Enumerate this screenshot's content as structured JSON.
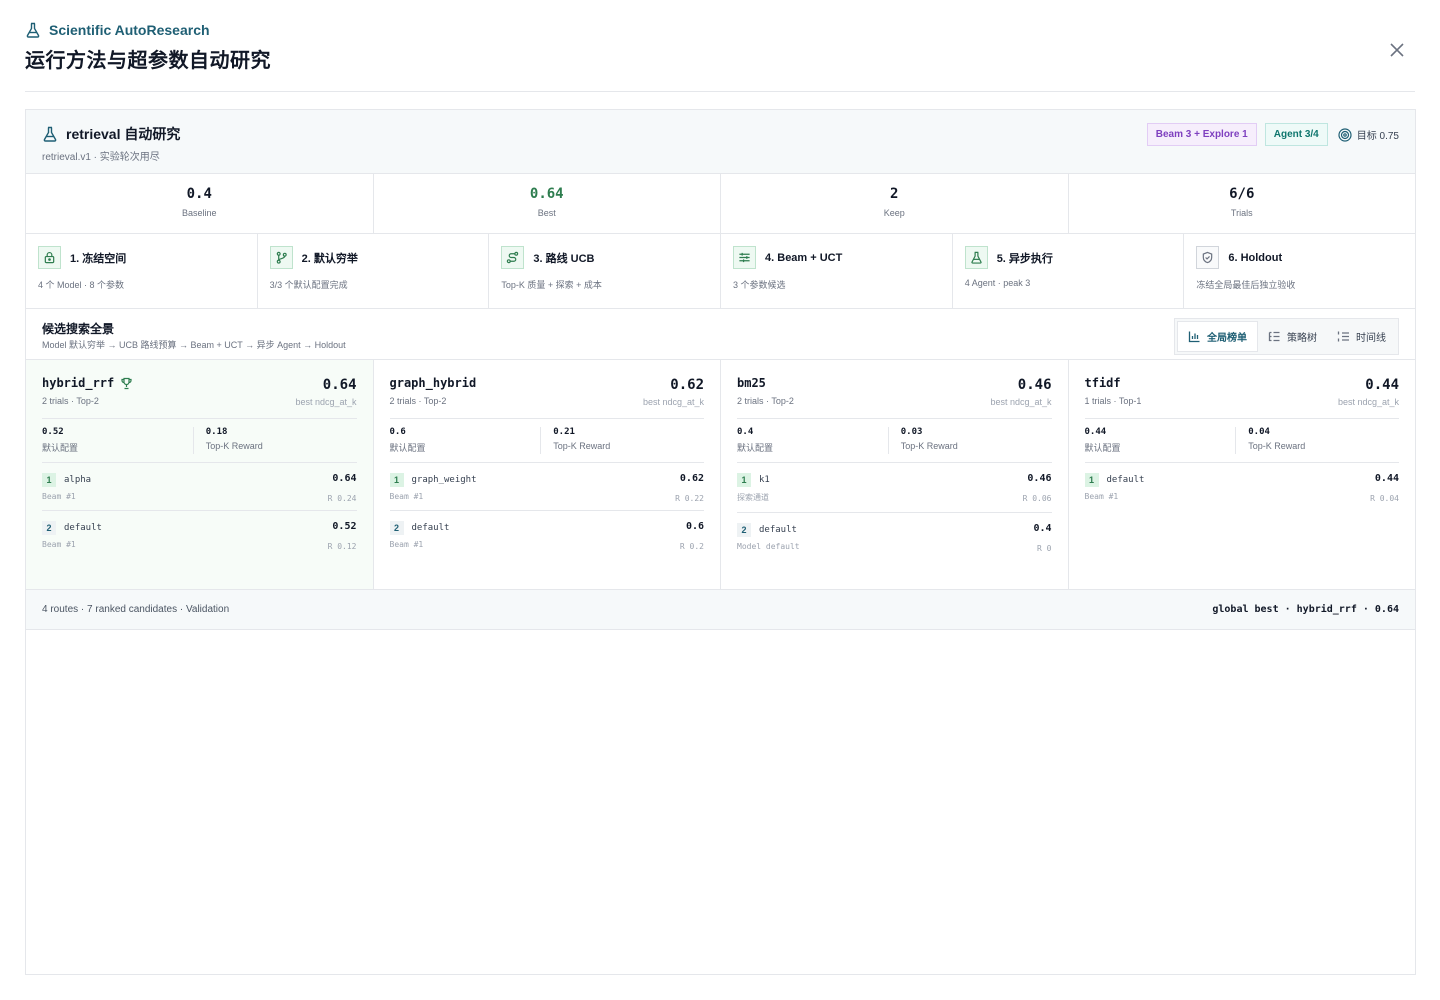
{
  "header": {
    "brand": "Scientific AutoResearch",
    "title": "运行方法与超参数自动研究"
  },
  "panel": {
    "title": "retrieval 自动研究",
    "subtitle": "retrieval.v1 · 实验轮次用尽",
    "badges": {
      "strategy": "Beam 3 + Explore 1",
      "agent": "Agent 3/4",
      "target": "目标 0.75"
    }
  },
  "stats": [
    {
      "value": "0.4",
      "label": "Baseline"
    },
    {
      "value": "0.64",
      "label": "Best"
    },
    {
      "value": "2",
      "label": "Keep"
    },
    {
      "value": "6/6",
      "label": "Trials"
    }
  ],
  "steps": [
    {
      "title": "1. 冻结空间",
      "desc": "4 个 Model · 8 个参数",
      "icon": "lock-icon"
    },
    {
      "title": "2. 默认穷举",
      "desc": "3/3 个默认配置完成",
      "icon": "branch-icon"
    },
    {
      "title": "3. 路线 UCB",
      "desc": "Top-K 质量 + 探索 + 成本",
      "icon": "route-icon"
    },
    {
      "title": "4. Beam + UCT",
      "desc": "3 个参数候选",
      "icon": "sliders-icon"
    },
    {
      "title": "5. 异步执行",
      "desc": "4 Agent · peak 3",
      "icon": "flask-icon"
    },
    {
      "title": "6. Holdout",
      "desc": "冻结全局最佳后独立验收",
      "icon": "shield-icon"
    }
  ],
  "search": {
    "title": "候选搜索全景",
    "subtitle": "Model 默认穷举 → UCB 路线预算 → Beam + UCT → 异步 Agent → Holdout",
    "tabs": [
      "全局榜单",
      "策略树",
      "时间线"
    ]
  },
  "cards": [
    {
      "name": "hybrid_rrf",
      "meta": "2 trials · Top-2",
      "score": "0.64",
      "metric": "best ndcg_at_k",
      "default_val": "0.52",
      "default_label": "默认配置",
      "reward_val": "0.18",
      "reward_label": "Top-K Reward",
      "rows": [
        {
          "rank": "1",
          "name": "alpha",
          "score": "0.64",
          "sub": "Beam #1",
          "r": "R 0.24"
        },
        {
          "rank": "2",
          "name": "default",
          "score": "0.52",
          "sub": "Beam #1",
          "r": "R 0.12"
        }
      ]
    },
    {
      "name": "graph_hybrid",
      "meta": "2 trials · Top-2",
      "score": "0.62",
      "metric": "best ndcg_at_k",
      "default_val": "0.6",
      "default_label": "默认配置",
      "reward_val": "0.21",
      "reward_label": "Top-K Reward",
      "rows": [
        {
          "rank": "1",
          "name": "graph_weight",
          "score": "0.62",
          "sub": "Beam #1",
          "r": "R 0.22"
        },
        {
          "rank": "2",
          "name": "default",
          "score": "0.6",
          "sub": "Beam #1",
          "r": "R 0.2"
        }
      ]
    },
    {
      "name": "bm25",
      "meta": "2 trials · Top-2",
      "score": "0.46",
      "metric": "best ndcg_at_k",
      "default_val": "0.4",
      "default_label": "默认配置",
      "reward_val": "0.03",
      "reward_label": "Top-K Reward",
      "rows": [
        {
          "rank": "1",
          "name": "k1",
          "score": "0.46",
          "sub": "探索通道",
          "r": "R 0.06"
        },
        {
          "rank": "2",
          "name": "default",
          "score": "0.4",
          "sub": "Model default",
          "r": "R 0"
        }
      ]
    },
    {
      "name": "tfidf",
      "meta": "1 trials · Top-1",
      "score": "0.44",
      "metric": "best ndcg_at_k",
      "default_val": "0.44",
      "default_label": "默认配置",
      "reward_val": "0.04",
      "reward_label": "Top-K Reward",
      "rows": [
        {
          "rank": "1",
          "name": "default",
          "score": "0.44",
          "sub": "Beam #1",
          "r": "R 0.04"
        }
      ]
    }
  ],
  "footer": {
    "left": "4 routes · 7 ranked candidates · Validation",
    "right": "global best · hybrid_rrf · 0.64"
  },
  "colors": {
    "accent": "#1f5f74",
    "best": "#2e7d4f",
    "purple": "#7e3fbf"
  }
}
